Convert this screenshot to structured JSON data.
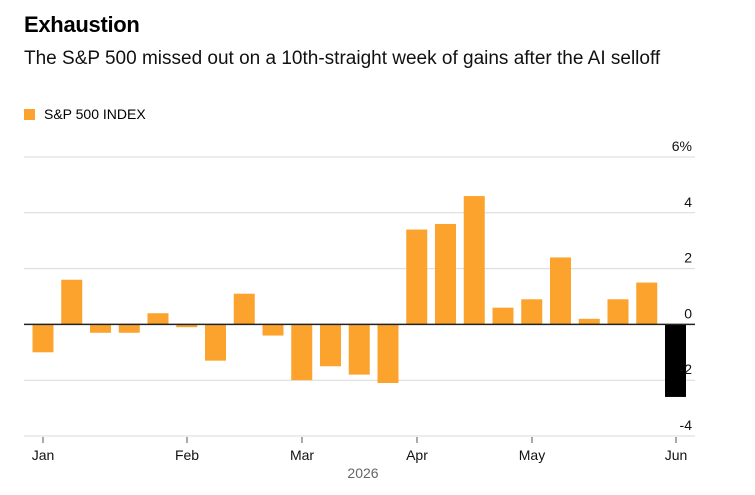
{
  "chart_data": {
    "type": "bar",
    "title": "Exhaustion",
    "subtitle": "The S&P 500 missed out on a 10th-straight week of gains after the AI selloff",
    "series": [
      {
        "name": "S&P 500 INDEX",
        "color": "#fca32e",
        "highlight_color": "#000000",
        "values": [
          -1.0,
          1.6,
          -0.3,
          -0.3,
          0.4,
          -0.1,
          -1.3,
          1.1,
          -0.4,
          -2.0,
          -1.5,
          -1.8,
          -2.1,
          3.4,
          3.6,
          4.6,
          0.6,
          0.9,
          2.4,
          0.2,
          0.9,
          1.5,
          -2.6
        ]
      }
    ],
    "highlight_last": true,
    "ylim": [
      -4,
      6
    ],
    "yticks": [
      6,
      4,
      2,
      0,
      -2,
      -4
    ],
    "ytick_labels": [
      "6%",
      "4",
      "2",
      "0",
      "-2",
      "-4"
    ],
    "xtick_labels": [
      "Jan",
      "Feb",
      "Mar",
      "Apr",
      "May",
      "Jun"
    ],
    "xlabel": "2026",
    "grid": true
  }
}
